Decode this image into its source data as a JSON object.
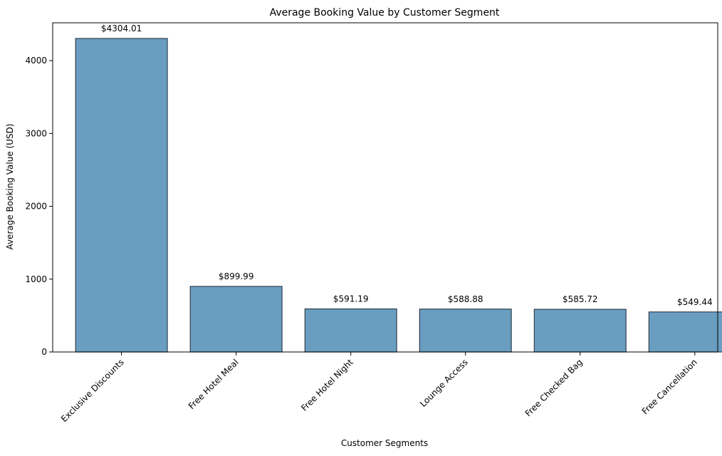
{
  "chart_data": {
    "type": "bar",
    "title": "Average Booking Value by Customer Segment",
    "xlabel": "Customer Segments",
    "ylabel": "Average Booking Value (USD)",
    "categories": [
      "Exclusive Discounts",
      "Free Hotel Meal",
      "Free Hotel Night",
      "Lounge Access",
      "Free Checked Bag",
      "Free Cancellation"
    ],
    "values": [
      4304.01,
      899.99,
      591.19,
      588.88,
      585.72,
      549.44
    ],
    "data_labels": [
      "$4304.01",
      "$899.99",
      "$591.19",
      "$588.88",
      "$585.72",
      "$549.44"
    ],
    "y_ticks": [
      0,
      1000,
      2000,
      3000,
      4000
    ],
    "ylim": [
      0,
      4519.2
    ],
    "grid": false,
    "legend": "none",
    "bar_color": "#6a9ec0",
    "bar_edge_color": "#2f3f4f",
    "x_tick_rotation": 45
  }
}
